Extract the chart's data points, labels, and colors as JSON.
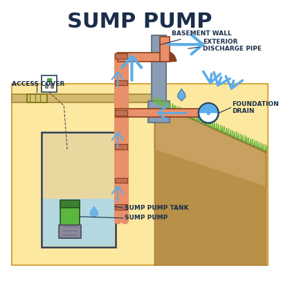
{
  "title": "SUMP PUMP",
  "title_fontsize": 22,
  "title_color": "#1a2e4a",
  "bg_color": "#ffffff",
  "diagram_bg": "#fde8a0",
  "floor_color": "#c8b870",
  "wall_color": "#8a9db5",
  "pipe_color": "#e8906a",
  "water_flow_color": "#5aade8",
  "ground_color": "#c8a060",
  "grass_color": "#6ab840",
  "tank_water_color": "#a8d8f0",
  "pump_green": "#5ab840",
  "pump_gray": "#8a8a9a",
  "label_color": "#1a2e4a",
  "label_fontsize": 6.5,
  "labels": {
    "basement_wall": "BASEMENT WALL",
    "exterior_pipe": "EXTERIOR\nDISCHARGE PIPE",
    "access_cover": "ACCESS COVER",
    "foundation_drain": "FOUNDATION\nDRAIN",
    "sump_pump_tank": "SUMP PUMP TANK",
    "sump_pump": "SUMP PUMP"
  }
}
